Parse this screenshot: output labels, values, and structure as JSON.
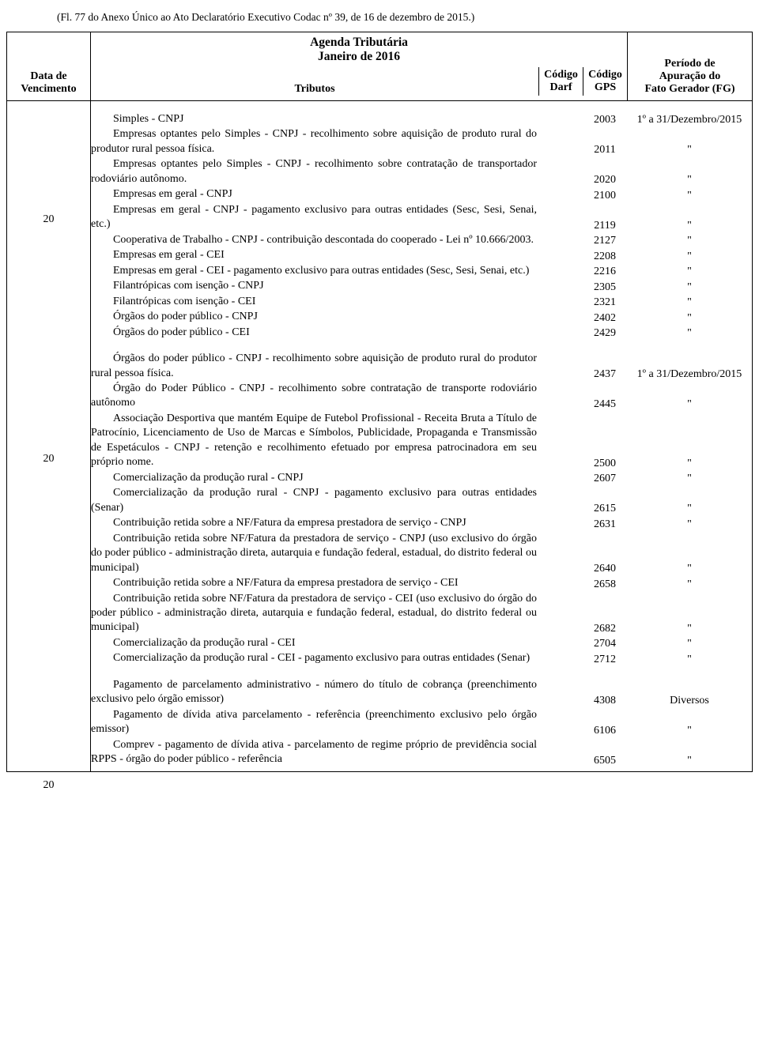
{
  "header_note": "(Fl. 77 do Anexo Único ao Ato Declaratório Executivo Codac nº 39, de 16 de dezembro de 2015.)",
  "title_line1": "Agenda Tributária",
  "title_line2": "Janeiro de 2016",
  "head": {
    "data_l1": "Data de",
    "data_l2": "Vencimento",
    "tributos": "Tributos",
    "codigo": "Código",
    "darf": "Darf",
    "gps": "GPS",
    "periodo_l1": "Período de",
    "periodo_l2": "Apuração do",
    "periodo_l3": "Fato Gerador (FG)"
  },
  "sections": [
    {
      "date": "20",
      "rows": [
        {
          "desc": "Simples - CNPJ",
          "indent": true,
          "gps": "2003",
          "periodo": "1º a 31/Dezembro/2015"
        },
        {
          "desc": "Empresas optantes pelo Simples - CNPJ - recolhimento sobre aquisição de produto rural do produtor rural pessoa física.",
          "indent": true,
          "gps": "2011",
          "periodo": "\""
        },
        {
          "desc": "Empresas optantes pelo Simples - CNPJ - recolhimento sobre contratação de transportador rodoviário autônomo.",
          "indent": true,
          "gps": "2020",
          "periodo": "\""
        },
        {
          "desc": "Empresas em geral - CNPJ",
          "indent": true,
          "gps": "2100",
          "periodo": "\""
        },
        {
          "desc": "Empresas em geral - CNPJ - pagamento exclusivo para outras entidades (Sesc, Sesi, Senai, etc.)",
          "indent": true,
          "gps": "2119",
          "periodo": "\""
        },
        {
          "desc": "Cooperativa de Trabalho - CNPJ - contribuição descontada do cooperado - Lei nº 10.666/2003.",
          "indent": true,
          "gps": "2127",
          "periodo": "\""
        },
        {
          "desc": "Empresas em geral - CEI",
          "indent": true,
          "gps": "2208",
          "periodo": "\""
        },
        {
          "desc": "Empresas em geral - CEI - pagamento exclusivo para outras entidades (Sesc, Sesi, Senai, etc.)",
          "indent": true,
          "gps": "2216",
          "periodo": "\""
        },
        {
          "desc": "Filantrópicas com isenção - CNPJ",
          "indent": true,
          "gps": "2305",
          "periodo": "\""
        },
        {
          "desc": "Filantrópicas com isenção - CEI",
          "indent": true,
          "gps": "2321",
          "periodo": "\""
        },
        {
          "desc": "Órgãos do poder público - CNPJ",
          "indent": true,
          "gps": "2402",
          "periodo": "\""
        },
        {
          "desc": "Órgãos do poder público - CEI",
          "indent": true,
          "gps": "2429",
          "periodo": "\""
        }
      ]
    },
    {
      "date": "20",
      "rows": [
        {
          "desc": "Órgãos do poder público - CNPJ - recolhimento sobre aquisição de produto rural do produtor rural pessoa física.",
          "indent": true,
          "gps": "2437",
          "periodo": "1º a 31/Dezembro/2015"
        },
        {
          "desc": "Órgão do Poder Público - CNPJ - recolhimento sobre contratação de transporte rodoviário autônomo",
          "indent": true,
          "gps": "2445",
          "periodo": "\""
        },
        {
          "desc": "Associação Desportiva que mantém Equipe de Futebol Profissional - Receita Bruta a Título de Patrocínio, Licenciamento de Uso de Marcas e Símbolos, Publicidade, Propaganda e Transmissão de Espetáculos - CNPJ - retenção e recolhimento efetuado por empresa patrocinadora em seu próprio nome.",
          "indent": true,
          "gps": "2500",
          "periodo": "\""
        },
        {
          "desc": "Comercialização da produção rural - CNPJ",
          "indent": true,
          "gps": "2607",
          "periodo": "\""
        },
        {
          "desc": "Comercialização da produção rural - CNPJ - pagamento exclusivo para outras entidades (Senar)",
          "indent": true,
          "gps": "2615",
          "periodo": "\""
        },
        {
          "desc": "Contribuição retida sobre a NF/Fatura da empresa prestadora de serviço - CNPJ",
          "indent": true,
          "gps": "2631",
          "periodo": "\""
        },
        {
          "desc": "Contribuição retida sobre NF/Fatura da prestadora de serviço - CNPJ (uso exclusivo do órgão do poder público - administração direta, autarquia e fundação federal, estadual, do distrito federal ou municipal)",
          "indent": true,
          "gps": "2640",
          "periodo": "\""
        },
        {
          "desc": "Contribuição retida sobre a NF/Fatura da empresa prestadora de serviço - CEI",
          "indent": true,
          "gps": "2658",
          "periodo": "\""
        },
        {
          "desc": "Contribuição retida sobre NF/Fatura da prestadora de serviço - CEI (uso exclusivo do órgão do poder público - administração direta, autarquia e fundação federal, estadual, do distrito federal ou municipal)",
          "indent": true,
          "gps": "2682",
          "periodo": "\""
        },
        {
          "desc": "Comercialização da produção rural - CEI",
          "indent": true,
          "gps": "2704",
          "periodo": "\""
        },
        {
          "desc": "Comercialização da produção rural - CEI - pagamento exclusivo para outras entidades (Senar)",
          "indent": true,
          "gps": "2712",
          "periodo": "\""
        }
      ]
    },
    {
      "date": "20",
      "rows": [
        {
          "desc": "Pagamento de parcelamento administrativo - número do título de cobrança (preenchimento exclusivo pelo órgão emissor)",
          "indent": true,
          "gps": "4308",
          "periodo": "Diversos"
        },
        {
          "desc": "Pagamento de dívida ativa parcelamento - referência (preenchimento exclusivo pelo órgão emissor)",
          "indent": true,
          "gps": "6106",
          "periodo": "\""
        },
        {
          "desc": "Comprev - pagamento de dívida ativa - parcelamento de regime próprio de previdência social RPPS - órgão do poder público - referência",
          "indent": true,
          "gps": "6505",
          "periodo": "\""
        }
      ]
    }
  ]
}
